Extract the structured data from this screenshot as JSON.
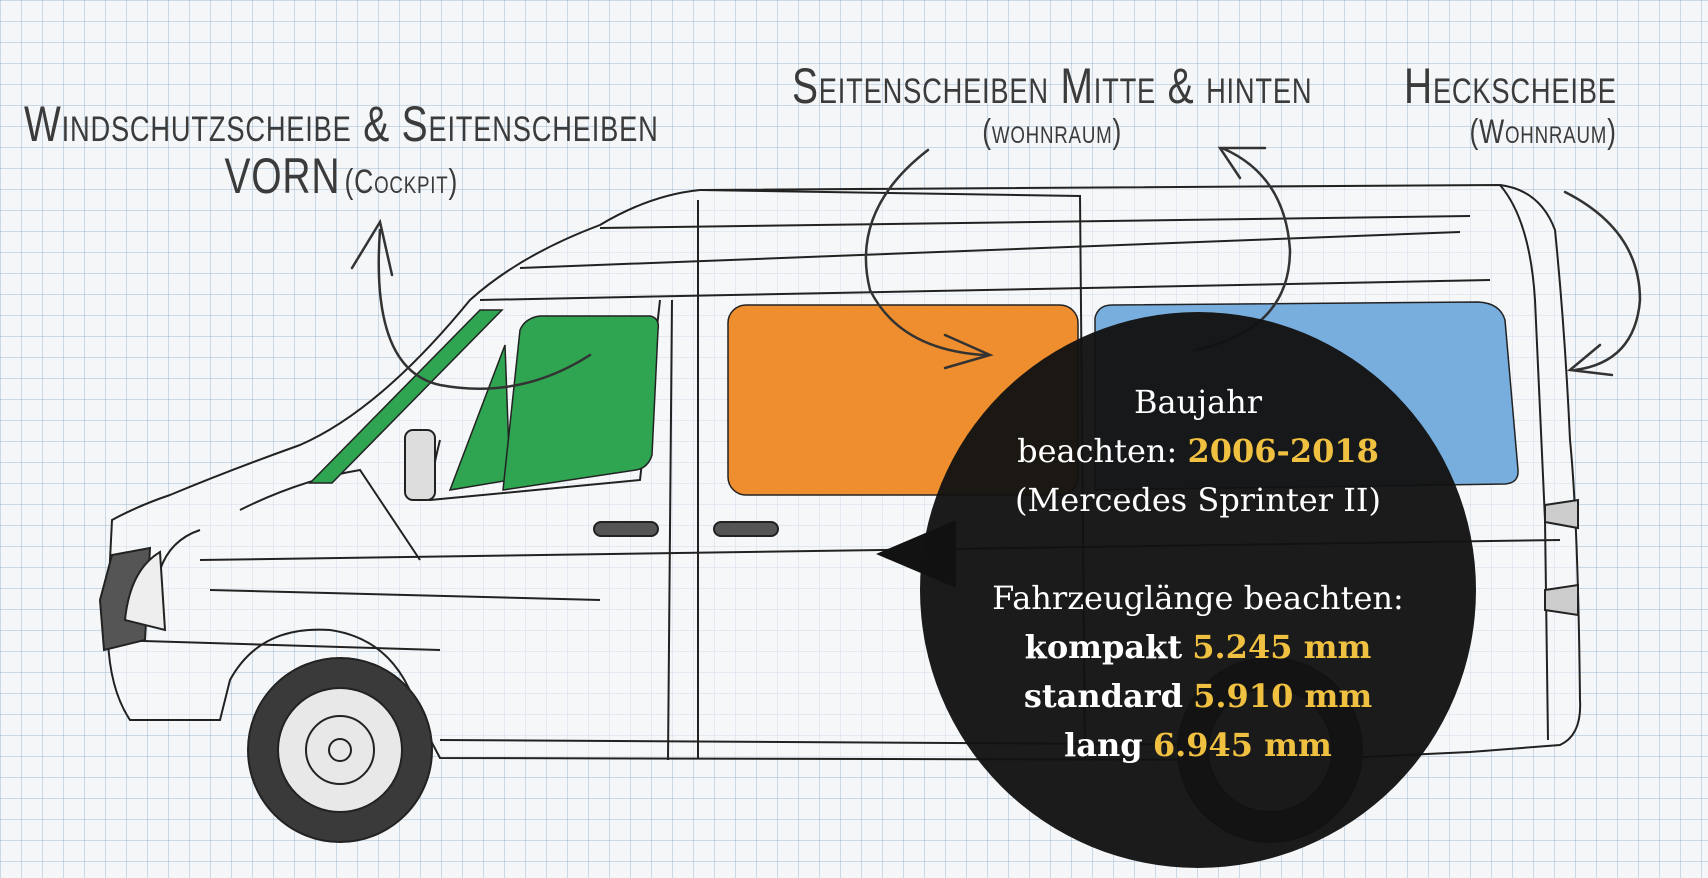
{
  "labels": {
    "front_line1": "Windschutzscheibe & Seitenscheiben",
    "front_line2a": "VORN",
    "front_line2b": "(Cockpit)",
    "mid_line1": "Seitenscheiben Mitte & hinten",
    "mid_line2": "(wohnraum)",
    "rear_line1": "Heckscheibe",
    "rear_line2": "(Wohnraum)"
  },
  "info": {
    "baujahr_label": "Baujahr",
    "baujahr_label2": "beachten:",
    "baujahr_value": "2006-2018",
    "model": "(Mercedes Sprinter II)",
    "length_heading": "Fahrzeuglänge beachten:",
    "lengths": [
      {
        "name": "kompakt",
        "value": "5.245 mm"
      },
      {
        "name": "standard",
        "value": "5.910 mm"
      },
      {
        "name": "lang",
        "value": "6.945 mm"
      }
    ]
  },
  "colors": {
    "front_windows": "#2fa552",
    "middle_window": "#ef8e2e",
    "rear_window": "#78aede",
    "highlight": "#f0c040",
    "bubble": "#121212"
  }
}
